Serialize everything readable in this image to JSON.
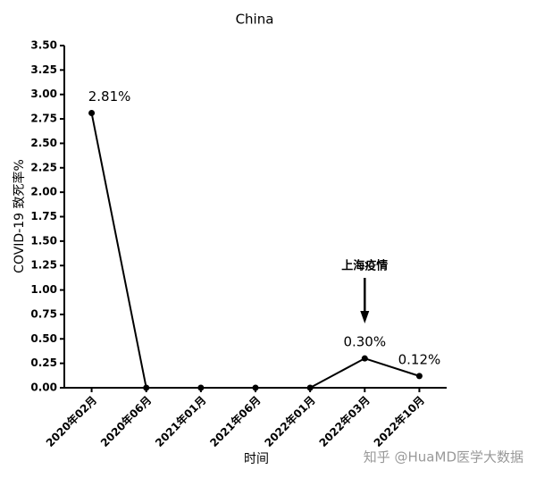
{
  "chart_data": {
    "type": "line",
    "title": "China",
    "y_label": "COVID-19 致死率%",
    "x_label": "时间",
    "categories": [
      "2020年02月",
      "2020年06月",
      "2021年01月",
      "2021年06月",
      "2022年01月",
      "2022年03月",
      "2022年10月"
    ],
    "values": [
      2.81,
      0,
      0,
      0,
      0,
      0.3,
      0.12
    ],
    "value_labels": [
      "2.81%",
      null,
      null,
      null,
      null,
      "0.30%",
      "0.12%"
    ],
    "color": "#000000",
    "ylim": [
      0,
      3.5
    ],
    "yticks": [
      {
        "value": 0,
        "label": "0.00"
      },
      {
        "value": 0.25,
        "label": "0.25"
      },
      {
        "value": 0.5,
        "label": "0.50"
      },
      {
        "value": 0.75,
        "label": "0.75"
      },
      {
        "value": 1,
        "label": "1.00"
      },
      {
        "value": 1.25,
        "label": "1.25"
      },
      {
        "value": 1.5,
        "label": "1.50"
      },
      {
        "value": 1.75,
        "label": "1.75"
      },
      {
        "value": 2,
        "label": "2.00"
      },
      {
        "value": 2.25,
        "label": "2.25"
      },
      {
        "value": 2.5,
        "label": "2.50"
      },
      {
        "value": 2.75,
        "label": "2.75"
      },
      {
        "value": 3,
        "label": "3.00"
      },
      {
        "value": 3.25,
        "label": "3.25"
      },
      {
        "value": 3.5,
        "label": "3.50"
      }
    ],
    "annotation": "上海疫情",
    "watermark": "知乎 @HuaMD医学大数据"
  }
}
